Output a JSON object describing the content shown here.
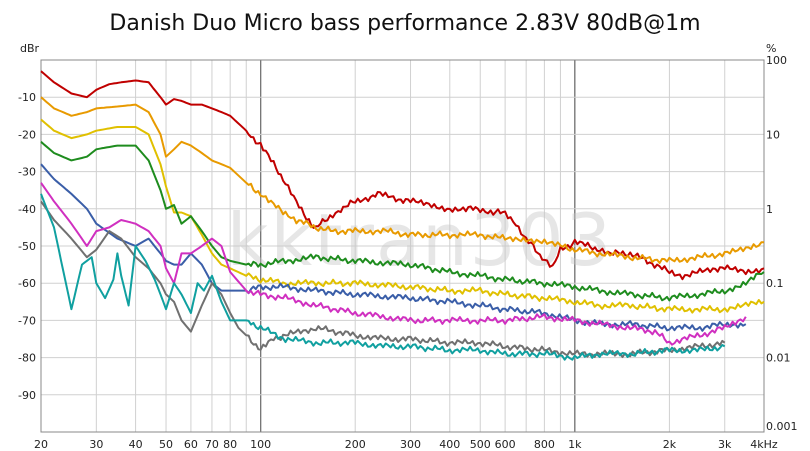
{
  "chart_data": {
    "type": "line",
    "title": "Danish Duo Micro bass performance 2.83V 80dB@1m",
    "watermark": "kktran303",
    "left_unit": "dBr",
    "right_unit": "%",
    "x_scale": "log",
    "xlim": [
      20,
      4000
    ],
    "ylim_left": [
      -100,
      0
    ],
    "ylim_right": [
      0.001,
      100
    ],
    "grid": true,
    "x_ticks": [
      {
        "v": 20,
        "label": "20"
      },
      {
        "v": 30,
        "label": "30"
      },
      {
        "v": 40,
        "label": "40"
      },
      {
        "v": 50,
        "label": "50"
      },
      {
        "v": 60,
        "label": "60"
      },
      {
        "v": 70,
        "label": "70"
      },
      {
        "v": 80,
        "label": "80"
      },
      {
        "v": 100,
        "label": "100"
      },
      {
        "v": 200,
        "label": "200"
      },
      {
        "v": 300,
        "label": "300"
      },
      {
        "v": 400,
        "label": "400"
      },
      {
        "v": 500,
        "label": "500"
      },
      {
        "v": 600,
        "label": "600"
      },
      {
        "v": 800,
        "label": "800"
      },
      {
        "v": 1000,
        "label": "1k"
      },
      {
        "v": 2000,
        "label": "2k"
      },
      {
        "v": 3000,
        "label": "3k"
      },
      {
        "v": 4000,
        "label": "4kHz"
      }
    ],
    "y_ticks_left": [
      {
        "v": -10,
        "label": "-10"
      },
      {
        "v": -20,
        "label": "-20"
      },
      {
        "v": -30,
        "label": "-30"
      },
      {
        "v": -40,
        "label": "-40"
      },
      {
        "v": -50,
        "label": "-50"
      },
      {
        "v": -60,
        "label": "-60"
      },
      {
        "v": -70,
        "label": "-70"
      },
      {
        "v": -80,
        "label": "-80"
      },
      {
        "v": -90,
        "label": "-90"
      }
    ],
    "y_ticks_right": [
      {
        "v": 100,
        "label": "100"
      },
      {
        "v": 10,
        "label": "10"
      },
      {
        "v": 1,
        "label": "1"
      },
      {
        "v": 0.1,
        "label": "0.1"
      },
      {
        "v": 0.01,
        "label": "0.01"
      },
      {
        "v": 0.001,
        "label": "0.001"
      }
    ],
    "series": [
      {
        "color": "#c00000",
        "x": [
          20,
          22,
          25,
          28,
          30,
          33,
          36,
          40,
          44,
          48,
          50,
          53,
          56,
          60,
          65,
          70,
          75,
          80,
          90,
          100,
          110,
          120,
          130,
          140,
          150,
          160,
          180,
          200,
          220,
          240,
          260,
          300,
          350,
          400,
          450,
          500,
          550,
          600,
          650,
          700,
          750,
          800,
          850,
          900,
          950,
          1000,
          1100,
          1200,
          1300,
          1500,
          1700,
          2000,
          2200,
          2500,
          2800,
          3000,
          3500,
          4000
        ],
        "y": [
          -3,
          -6,
          -9,
          -10,
          -8,
          -6.5,
          -6,
          -5.5,
          -6,
          -10,
          -12,
          -10.5,
          -11,
          -12,
          -12,
          -13,
          -14,
          -15,
          -19,
          -23,
          -28,
          -33,
          -38,
          -43,
          -45,
          -43,
          -40,
          -38,
          -37,
          -36,
          -37,
          -38,
          -39,
          -40,
          -40,
          -40,
          -41,
          -41,
          -44,
          -48,
          -51,
          -54,
          -56,
          -51,
          -50,
          -49,
          -50,
          -51,
          -52,
          -52,
          -54,
          -57,
          -58,
          -57,
          -56,
          -56,
          -57,
          -56
        ]
      },
      {
        "color": "#e89a00",
        "x": [
          20,
          22,
          25,
          28,
          30,
          35,
          40,
          44,
          48,
          50,
          53,
          56,
          60,
          65,
          70,
          75,
          80,
          90,
          100,
          110,
          120,
          130,
          150,
          170,
          200,
          250,
          300,
          400,
          500,
          600,
          700,
          800,
          900,
          1000,
          1200,
          1500,
          2000,
          2500,
          3000,
          3500,
          4000
        ],
        "y": [
          -10,
          -13,
          -15,
          -14,
          -13,
          -12.5,
          -12,
          -14,
          -20,
          -26,
          -24,
          -22,
          -23,
          -25,
          -27,
          -28,
          -29,
          -33,
          -36,
          -39,
          -41,
          -43,
          -45,
          -46,
          -46,
          -46,
          -47,
          -47,
          -47,
          -48,
          -48,
          -49,
          -50,
          -51,
          -52,
          -53,
          -54,
          -53,
          -52,
          -51,
          -49
        ]
      },
      {
        "color": "#e0c000",
        "x": [
          20,
          22,
          25,
          28,
          30,
          35,
          40,
          44,
          48,
          50,
          53,
          56,
          60,
          65,
          70,
          75,
          80,
          90,
          100,
          120,
          150,
          200,
          300,
          400,
          500,
          600,
          800,
          1000,
          1200,
          1500,
          2000,
          2500,
          3000,
          3500,
          4000
        ],
        "y": [
          -16,
          -19,
          -21,
          -20,
          -19,
          -18,
          -18,
          -20,
          -28,
          -34,
          -41,
          -41,
          -42,
          -47,
          -52,
          -55,
          -56,
          -58,
          -59,
          -60,
          -60,
          -60,
          -61,
          -62,
          -62,
          -63,
          -64,
          -65,
          -66,
          -66,
          -67,
          -67,
          -67,
          -66,
          -65
        ]
      },
      {
        "color": "#1e8c1e",
        "x": [
          20,
          22,
          25,
          28,
          30,
          35,
          40,
          44,
          48,
          50,
          53,
          56,
          60,
          65,
          70,
          75,
          80,
          90,
          100,
          120,
          150,
          200,
          300,
          400,
          500,
          600,
          800,
          1000,
          1200,
          1500,
          2000,
          2500,
          3000,
          3500,
          4000
        ],
        "y": [
          -22,
          -25,
          -27,
          -26,
          -24,
          -23,
          -23,
          -27,
          -35,
          -40,
          -39,
          -44,
          -42,
          -46,
          -50,
          -53,
          -54,
          -55,
          -55,
          -54,
          -53,
          -54,
          -55,
          -57,
          -58,
          -59,
          -60,
          -61,
          -62,
          -63,
          -64,
          -63,
          -62,
          -60,
          -57
        ]
      },
      {
        "color": "#3a5ea8",
        "x": [
          20,
          22,
          25,
          28,
          30,
          35,
          40,
          44,
          48,
          50,
          53,
          56,
          60,
          65,
          70,
          75,
          80,
          90,
          100,
          120,
          150,
          200,
          300,
          400,
          500,
          600,
          800,
          1000,
          1200,
          1500,
          2000,
          2500,
          3000,
          3500
        ],
        "y": [
          -28,
          -32,
          -36,
          -40,
          -44,
          -48,
          -50,
          -48,
          -52,
          -54,
          -55,
          -55,
          -52,
          -55,
          -60,
          -62,
          -62,
          -62,
          -61,
          -61,
          -62,
          -63,
          -64,
          -65,
          -66,
          -67,
          -68,
          -70,
          -71,
          -71,
          -72,
          -72,
          -71,
          -71
        ]
      },
      {
        "color": "#d030c0",
        "x": [
          20,
          22,
          25,
          28,
          30,
          33,
          36,
          40,
          44,
          48,
          50,
          53,
          56,
          60,
          65,
          70,
          75,
          80,
          90,
          100,
          120,
          150,
          200,
          300,
          400,
          500,
          600,
          800,
          1000,
          1200,
          1500,
          1800,
          2000,
          2500,
          3000,
          3500
        ],
        "y": [
          -33,
          -38,
          -44,
          -50,
          -46,
          -45,
          -43,
          -44,
          -46,
          -50,
          -56,
          -60,
          -52,
          -52,
          -50,
          -48,
          -50,
          -57,
          -62,
          -63,
          -64,
          -66,
          -68,
          -70,
          -70,
          -70,
          -70,
          -69,
          -70,
          -71,
          -72,
          -73,
          -76,
          -74,
          -72,
          -69
        ]
      },
      {
        "color": "#707070",
        "x": [
          20,
          22,
          25,
          28,
          30,
          33,
          36,
          40,
          44,
          48,
          50,
          53,
          56,
          60,
          65,
          70,
          75,
          80,
          85,
          90,
          95,
          100,
          110,
          120,
          150,
          200,
          250,
          300,
          400,
          500,
          600,
          800,
          1000,
          1200,
          1500,
          2000,
          2500,
          3000
        ],
        "y": [
          -38,
          -43,
          -48,
          -53,
          -51,
          -46,
          -48,
          -53,
          -56,
          -60,
          -63,
          -65,
          -70,
          -73,
          -66,
          -60,
          -63,
          -68,
          -72,
          -74,
          -76,
          -78,
          -75,
          -74,
          -72,
          -74,
          -75,
          -75,
          -76,
          -76,
          -77,
          -78,
          -79,
          -79,
          -79,
          -78,
          -77,
          -76
        ]
      },
      {
        "color": "#10a0a0",
        "x": [
          20,
          22,
          24,
          25,
          27,
          29,
          30,
          32,
          34,
          35,
          36,
          38,
          40,
          43,
          46,
          48,
          50,
          53,
          56,
          60,
          63,
          66,
          70,
          75,
          80,
          90,
          100,
          120,
          150,
          200,
          250,
          300,
          400,
          500,
          600,
          800,
          1000,
          1200,
          1500,
          2000,
          2500,
          3000
        ],
        "y": [
          -36,
          -45,
          -60,
          -67,
          -55,
          -53,
          -60,
          -64,
          -59,
          -52,
          -58,
          -66,
          -50,
          -54,
          -59,
          -63,
          -67,
          -60,
          -63,
          -68,
          -60,
          -62,
          -58,
          -65,
          -70,
          -70,
          -72,
          -75,
          -76,
          -76,
          -77,
          -77,
          -78,
          -78,
          -79,
          -79,
          -80,
          -79,
          -79,
          -78,
          -78,
          -77
        ]
      }
    ]
  }
}
